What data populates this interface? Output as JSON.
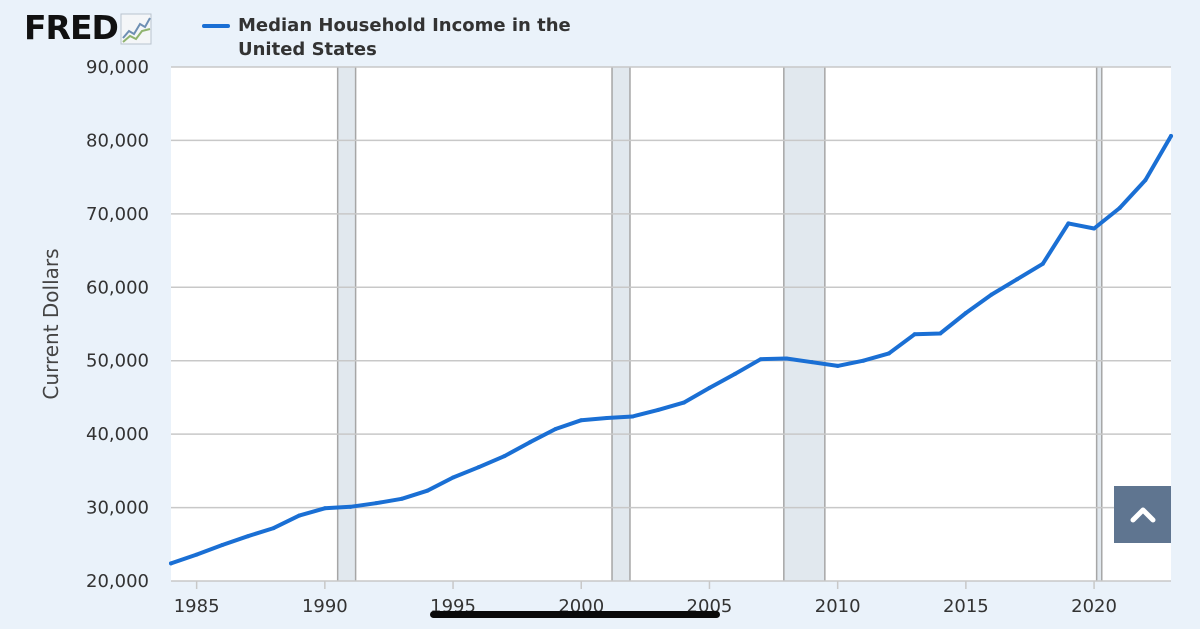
{
  "logo": {
    "text": "FRED",
    "icon": "fred-line-chart-icon"
  },
  "legend": {
    "label": "Median Household Income in the United States",
    "color": "#1a6fd4"
  },
  "scroll_button": {
    "icon": "chevron-up-icon"
  },
  "colors": {
    "background": "#eaf2fa",
    "plot_background": "#ffffff",
    "grid": "#c8c8c8",
    "recession": "#e1e8ee",
    "recession_border": "#a6a6a6",
    "line": "#1a6fd4",
    "button": "#5f7590"
  },
  "chart_data": {
    "type": "line",
    "title": "",
    "xlabel": "",
    "ylabel": "Current Dollars",
    "xlim": [
      1984,
      2023
    ],
    "ylim": [
      20000,
      90000
    ],
    "grid": true,
    "legend_position": "top",
    "x_ticks": [
      1985,
      1990,
      1995,
      2000,
      2005,
      2010,
      2015,
      2020
    ],
    "x_tick_labels": [
      "1985",
      "1990",
      "1995",
      "2000",
      "2005",
      "2010",
      "2015",
      "2020"
    ],
    "y_ticks": [
      20000,
      30000,
      40000,
      50000,
      60000,
      70000,
      80000,
      90000
    ],
    "y_tick_labels": [
      "20,000",
      "30,000",
      "40,000",
      "50,000",
      "60,000",
      "70,000",
      "80,000",
      "90,000"
    ],
    "recessions": [
      [
        1990.5,
        1991.2
      ],
      [
        2001.2,
        2001.9
      ],
      [
        2007.9,
        2009.5
      ],
      [
        2020.1,
        2020.3
      ]
    ],
    "series": [
      {
        "name": "Median Household Income in the United States",
        "x": [
          1984,
          1985,
          1986,
          1987,
          1988,
          1989,
          1990,
          1991,
          1992,
          1993,
          1994,
          1995,
          1996,
          1997,
          1998,
          1999,
          2000,
          2001,
          2002,
          2003,
          2004,
          2005,
          2006,
          2007,
          2008,
          2009,
          2010,
          2011,
          2012,
          2013,
          2014,
          2015,
          2016,
          2017,
          2018,
          2019,
          2020,
          2021,
          2022,
          2023
        ],
        "values": [
          22400,
          23600,
          24900,
          26100,
          27200,
          28900,
          29900,
          30100,
          30600,
          31200,
          32300,
          34100,
          35500,
          37000,
          38900,
          40700,
          41900,
          42200,
          42400,
          43300,
          44300,
          46300,
          48200,
          50200,
          50300,
          49800,
          49300,
          50000,
          51000,
          53600,
          53700,
          56500,
          59000,
          61100,
          63200,
          68700,
          68000,
          70800,
          74600,
          80600
        ]
      }
    ]
  }
}
